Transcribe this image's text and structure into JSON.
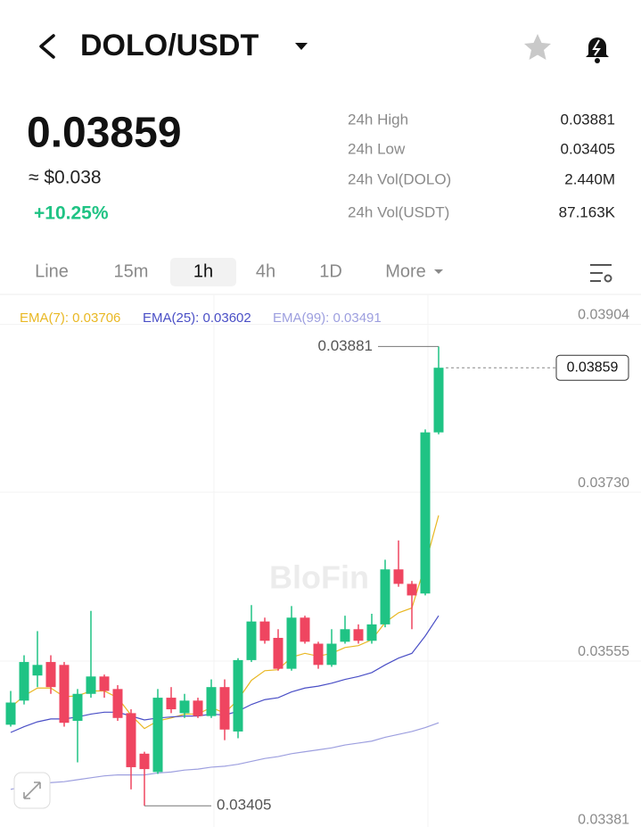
{
  "header": {
    "pair": "DOLO/USDT"
  },
  "ticker": {
    "price": "0.03859",
    "usd": "≈ $0.038",
    "change": "+10.25%"
  },
  "stats": [
    {
      "label": "24h High",
      "value": "0.03881"
    },
    {
      "label": "24h Low",
      "value": "0.03405"
    },
    {
      "label": "24h Vol(DOLO)",
      "value": "2.440M"
    },
    {
      "label": "24h Vol(USDT)",
      "value": "87.163K"
    }
  ],
  "tabs": {
    "items": [
      "Line",
      "15m",
      "1h",
      "4h",
      "1D",
      "More"
    ],
    "active": "1h"
  },
  "chart_data": {
    "type": "candlestick",
    "watermark": "BloFin",
    "up_color": "#1fc384",
    "down_color": "#ef4560",
    "ylim": [
      0.03383,
      0.03935
    ],
    "yticks": [
      0.03904,
      {
        "value": 0.0373,
        "label": "0.03730"
      },
      0.03555,
      0.03381
    ],
    "grid": true,
    "open": [
      0.03489,
      0.03514,
      0.0354,
      0.03554,
      0.03551,
      0.03493,
      0.03521,
      0.03539,
      0.03526,
      0.03501,
      0.03459,
      0.0344,
      0.03517,
      0.03501,
      0.03514,
      0.03498,
      0.03528,
      0.03482,
      0.03556,
      0.03596,
      0.03579,
      0.03547,
      0.036,
      0.03573,
      0.03551,
      0.03575,
      0.03588,
      0.03576,
      0.03593,
      0.0365,
      0.03635,
      0.03625,
      0.03792
    ],
    "high": [
      0.03524,
      0.03561,
      0.03586,
      0.03561,
      0.03554,
      0.03526,
      0.03607,
      0.03541,
      0.0353,
      0.03505,
      0.03461,
      0.03526,
      0.03528,
      0.03521,
      0.03517,
      0.03536,
      0.03536,
      0.03558,
      0.03613,
      0.036,
      0.03588,
      0.03612,
      0.03602,
      0.03575,
      0.03588,
      0.03602,
      0.03593,
      0.03604,
      0.0366,
      0.0368,
      0.03638,
      0.03795,
      0.03881
    ],
    "low": [
      0.03487,
      0.0351,
      0.03528,
      0.03521,
      0.03487,
      0.0345,
      0.03517,
      0.03517,
      0.03493,
      0.03422,
      0.03405,
      0.03438,
      0.03501,
      0.03496,
      0.03496,
      0.03496,
      0.03473,
      0.03475,
      0.03554,
      0.03573,
      0.03545,
      0.03545,
      0.03573,
      0.03547,
      0.03549,
      0.03573,
      0.03573,
      0.03573,
      0.0359,
      0.03632,
      0.03588,
      0.03623,
      0.0379
    ],
    "close": [
      0.03512,
      0.03554,
      0.03551,
      0.03528,
      0.03491,
      0.03521,
      0.03539,
      0.03524,
      0.03496,
      0.03445,
      0.03443,
      0.03517,
      0.03505,
      0.03514,
      0.03498,
      0.03528,
      0.03484,
      0.03556,
      0.03596,
      0.03576,
      0.03547,
      0.036,
      0.03575,
      0.03551,
      0.03573,
      0.03588,
      0.03576,
      0.03593,
      0.0365,
      0.03635,
      0.03623,
      0.03792,
      0.03859
    ],
    "series": [
      {
        "name": "EMA(7): 0.03706",
        "color": "#e9b824",
        "values": [
          0.03507,
          0.03519,
          0.03527,
          0.03527,
          0.03518,
          0.03519,
          0.03524,
          0.03524,
          0.03517,
          0.03499,
          0.03485,
          0.03493,
          0.03496,
          0.035,
          0.035,
          0.03507,
          0.03501,
          0.03515,
          0.03535,
          0.03545,
          0.03546,
          0.03559,
          0.03563,
          0.0356,
          0.03563,
          0.03569,
          0.03571,
          0.03577,
          0.03595,
          0.03605,
          0.0361,
          0.03655,
          0.03706
        ]
      },
      {
        "name": "EMA(25): 0.03602",
        "color": "#4a4fc6",
        "values": [
          0.03481,
          0.03487,
          0.03492,
          0.03495,
          0.03495,
          0.03497,
          0.035,
          0.03502,
          0.03502,
          0.03498,
          0.03494,
          0.03496,
          0.03497,
          0.03498,
          0.03498,
          0.035,
          0.03499,
          0.03503,
          0.0351,
          0.03515,
          0.03517,
          0.03523,
          0.03527,
          0.03529,
          0.03532,
          0.03536,
          0.03539,
          0.03543,
          0.03551,
          0.03558,
          0.03563,
          0.03581,
          0.03602
        ]
      },
      {
        "name": "EMA(99): 0.03491",
        "color": "#9d9fdf",
        "values": [
          0.03422,
          0.03425,
          0.03427,
          0.03429,
          0.0343,
          0.03432,
          0.03434,
          0.03436,
          0.03437,
          0.03437,
          0.03437,
          0.03439,
          0.0344,
          0.03442,
          0.03443,
          0.03445,
          0.03446,
          0.03448,
          0.03451,
          0.03454,
          0.03456,
          0.03459,
          0.03461,
          0.03463,
          0.03465,
          0.03468,
          0.0347,
          0.03472,
          0.03476,
          0.03479,
          0.03482,
          0.03486,
          0.03491
        ]
      }
    ]
  }
}
